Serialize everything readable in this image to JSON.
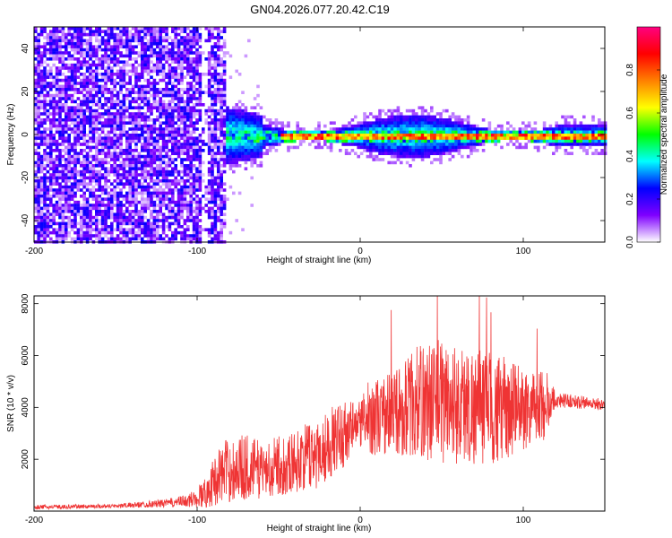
{
  "title": "GN04.2026.077.20.42.C19",
  "chart_data": [
    {
      "type": "heatmap",
      "xlabel": "Height of straight line (km)",
      "ylabel": "Frequency (Hz)",
      "xlim": [
        -200,
        150
      ],
      "ylim": [
        -50,
        50
      ],
      "xticks": [
        -200,
        -100,
        0,
        100
      ],
      "yticks": [
        -40,
        -20,
        0,
        20,
        40
      ],
      "colorbar": {
        "label": "Normalized spectral amplitude",
        "range": [
          0,
          1
        ],
        "ticks": [
          0.0,
          0.2,
          0.4,
          0.6,
          0.8
        ],
        "colors": [
          "#ffffff",
          "#7f00ff",
          "#0000ff",
          "#00ffff",
          "#00ff00",
          "#ffff00",
          "#ff8000",
          "#ff0000",
          "#ff0080"
        ]
      },
      "regions": [
        {
          "x_range": [
            -200,
            -80
          ],
          "y_range": [
            -50,
            50
          ],
          "amplitude": "0.1-0.25"
        },
        {
          "x_range": [
            -85,
            150
          ],
          "y_range": [
            -10,
            10
          ],
          "amplitude": "0.2-0.5"
        },
        {
          "x_range": [
            -50,
            150
          ],
          "y_range": [
            -2,
            2
          ],
          "amplitude": "0.6-0.95"
        }
      ]
    },
    {
      "type": "line",
      "xlabel": "Height of straight line (km)",
      "ylabel": "SNR (10 * v/v)",
      "xlim": [
        -200,
        150
      ],
      "ylim": [
        0,
        8300
      ],
      "xticks": [
        -200,
        -100,
        0,
        100
      ],
      "yticks": [
        2000,
        4000,
        6000,
        8000
      ],
      "series_color": "#ef3434",
      "envelope": {
        "x": [
          -200,
          -150,
          -120,
          -105,
          -95,
          -85,
          -70,
          -60,
          -40,
          -25,
          -10,
          0,
          5,
          15,
          25,
          35,
          50,
          60,
          75,
          90,
          105,
          115,
          120,
          135,
          150
        ],
        "y_mean": [
          150,
          200,
          300,
          400,
          700,
          1500,
          1700,
          1600,
          1900,
          2300,
          3000,
          3400,
          3600,
          3700,
          3900,
          4200,
          4300,
          4100,
          4000,
          3900,
          4000,
          4100,
          4300,
          4200,
          4100
        ],
        "y_spread": [
          80,
          80,
          150,
          250,
          600,
          1200,
          1300,
          1100,
          1200,
          1400,
          1300,
          1000,
          1400,
          1600,
          1800,
          2200,
          2500,
          2300,
          2300,
          2000,
          1500,
          1300,
          300,
          250,
          250
        ]
      }
    }
  ]
}
